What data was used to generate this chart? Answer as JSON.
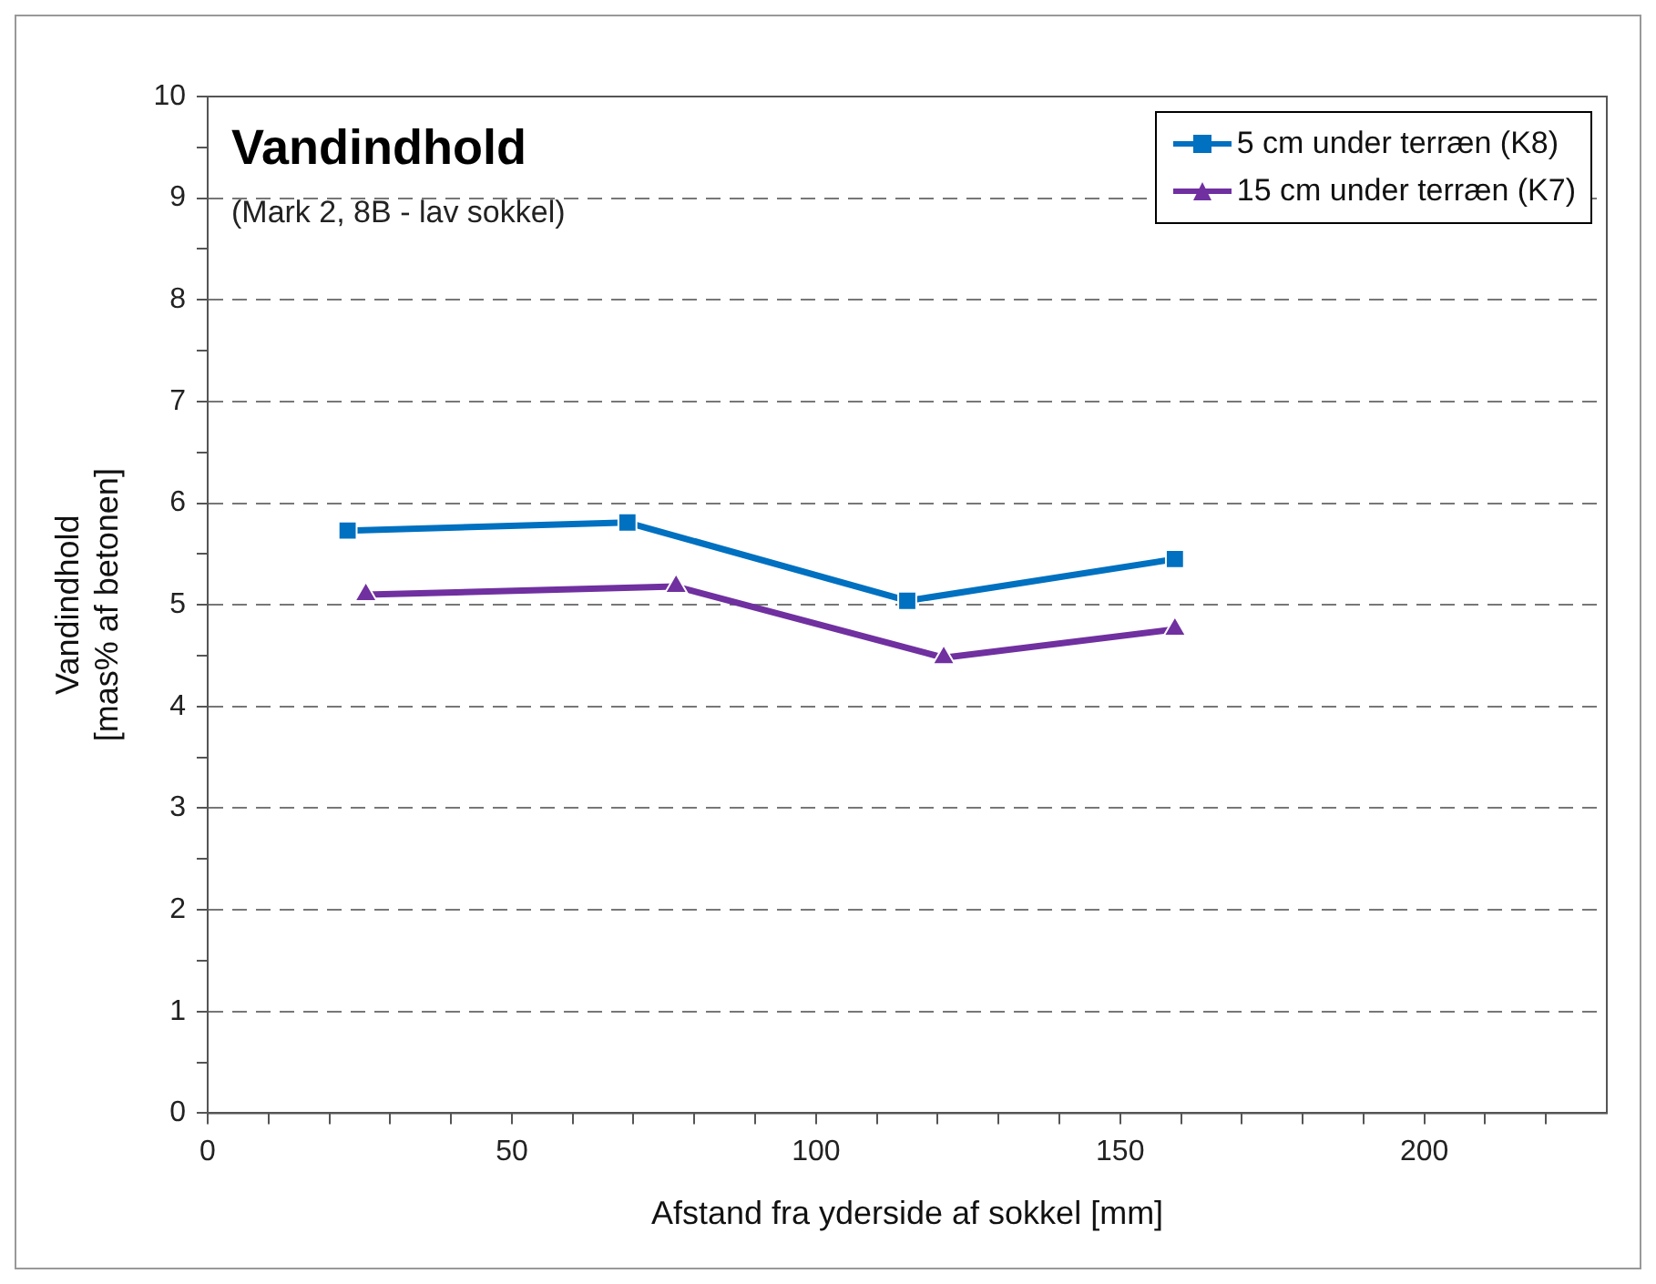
{
  "chart_data": {
    "type": "line",
    "title": "Vandindhold",
    "subtitle": "(Mark 2, 8B - lav sokkel)",
    "xlabel": "Afstand fra yderside af sokkel [mm]",
    "ylabel": "Vandindhold\n[mas% af betonen]",
    "xlim": [
      0,
      230
    ],
    "xticks": [
      0,
      {
        "value": 10,
        "label": null
      },
      {
        "value": 20,
        "label": null
      },
      {
        "value": 30,
        "label": null
      },
      {
        "value": 40,
        "label": null
      },
      50,
      {
        "value": 60,
        "label": null
      },
      {
        "value": 70,
        "label": null
      },
      {
        "value": 80,
        "label": null
      },
      {
        "value": 90,
        "label": null
      },
      100,
      {
        "value": 110,
        "label": null
      },
      {
        "value": 120,
        "label": null
      },
      {
        "value": 130,
        "label": null
      },
      {
        "value": 140,
        "label": null
      },
      150,
      {
        "value": 160,
        "label": null
      },
      {
        "value": 170,
        "label": null
      },
      {
        "value": 180,
        "label": null
      },
      {
        "value": 190,
        "label": null
      },
      200,
      {
        "value": 210,
        "label": null
      },
      {
        "value": 220,
        "label": null
      }
    ],
    "ylim": [
      0,
      10
    ],
    "yticks": [
      0,
      {
        "value": 0.5,
        "label": null
      },
      1,
      {
        "value": 1.5,
        "label": null
      },
      2,
      {
        "value": 2.5,
        "label": null
      },
      3,
      {
        "value": 3.5,
        "label": null
      },
      4,
      {
        "value": 4.5,
        "label": null
      },
      5,
      {
        "value": 5.5,
        "label": null
      },
      6,
      {
        "value": 6.5,
        "label": null
      },
      7,
      {
        "value": 7.5,
        "label": null
      },
      8,
      {
        "value": 8.5,
        "label": null
      },
      9,
      {
        "value": 9.5,
        "label": null
      },
      10
    ],
    "grid": "y",
    "legend": "top right",
    "line_style": "solid",
    "series": [
      {
        "name": "5 cm under terræn (K8)",
        "color": "#0070c0",
        "marker": "square",
        "x": [
          23,
          69,
          115,
          159
        ],
        "values": [
          5.73,
          5.81,
          5.04,
          5.45
        ]
      },
      {
        "name": "15 cm under terræn (K7)",
        "color": "#7030a0",
        "marker": "triangle",
        "x": [
          26,
          77,
          121,
          159
        ],
        "values": [
          5.1,
          5.18,
          4.48,
          4.76
        ]
      }
    ]
  }
}
